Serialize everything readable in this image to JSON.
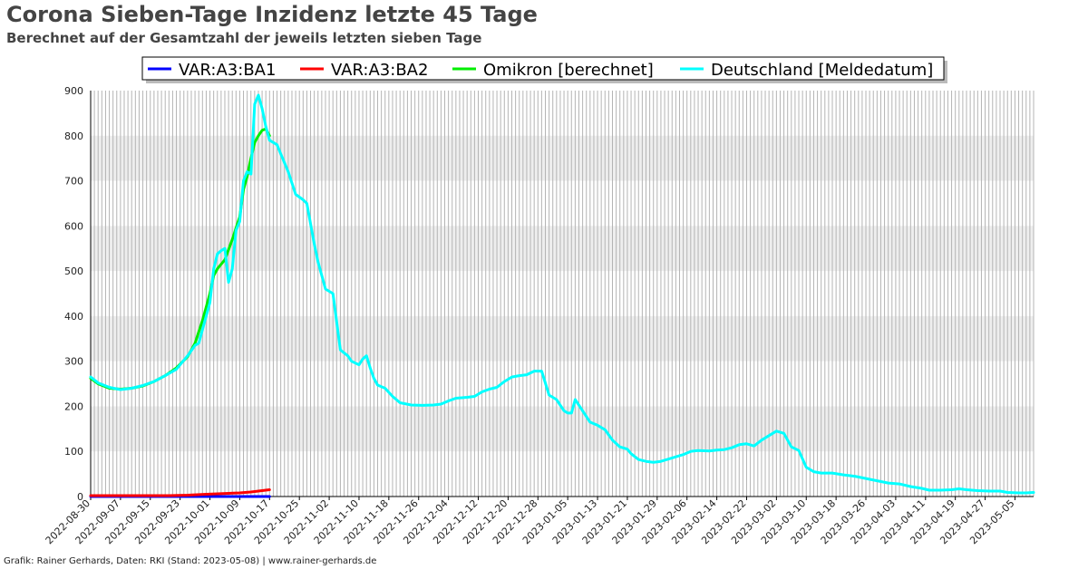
{
  "title": "Corona Sieben-Tage Inzidenz letzte 45 Tage",
  "subtitle": "Berechnet auf der Gesamtzahl der jeweils letzten sieben Tage",
  "footer": "Grafik: Rainer Gerhards, Daten: RKI (Stand: 2023-05-08) | www.rainer-gerhards.de",
  "colors": {
    "VAR:A3:BA1": "#0000ff",
    "VAR:A3:BA2": "#ff0000",
    "Omikron [berechnet]": "#00ee00",
    "Deutschland [Meldedatum]": "#00ffff",
    "band": "#eeeeee",
    "vgrid": "#b4b4b4"
  },
  "chart_data": {
    "type": "line",
    "x_start": "2022-08-30",
    "x_end": "2023-05-10",
    "ylim": [
      0,
      900
    ],
    "y_ticks": [
      "0",
      "100",
      "200",
      "300",
      "400",
      "500",
      "600",
      "700",
      "800",
      "900"
    ],
    "x_tick_labels": [
      "2022-08-30",
      "2022-09-07",
      "2022-09-15",
      "2022-09-23",
      "2022-10-01",
      "2022-10-09",
      "2022-10-17",
      "2022-10-25",
      "2022-11-02",
      "2022-11-10",
      "2022-11-18",
      "2022-11-26",
      "2022-12-04",
      "2022-12-12",
      "2022-12-20",
      "2022-12-28",
      "2023-01-05",
      "2023-01-13",
      "2023-01-21",
      "2023-01-29",
      "2023-02-06",
      "2023-02-14",
      "2023-02-22",
      "2023-03-02",
      "2023-03-10",
      "2023-03-18",
      "2023-03-26",
      "2023-04-03",
      "2023-04-11",
      "2023-04-19",
      "2023-04-27",
      "2023-05-05"
    ],
    "grid": "vertical daily lines, alternating horizontal bands",
    "legend_position": "top-center",
    "series": [
      {
        "name": "VAR:A3:BA1",
        "points": [
          [
            "2022-08-30",
            0
          ],
          [
            "2022-09-15",
            0
          ],
          [
            "2022-10-01",
            0
          ],
          [
            "2022-10-14",
            0
          ],
          [
            "2022-10-17",
            0
          ]
        ]
      },
      {
        "name": "VAR:A3:BA2",
        "points": [
          [
            "2022-08-30",
            2
          ],
          [
            "2022-09-10",
            2
          ],
          [
            "2022-09-20",
            2
          ],
          [
            "2022-09-25",
            3
          ],
          [
            "2022-09-30",
            5
          ],
          [
            "2022-10-03",
            6
          ],
          [
            "2022-10-06",
            7
          ],
          [
            "2022-10-09",
            8
          ],
          [
            "2022-10-12",
            10
          ],
          [
            "2022-10-15",
            13
          ],
          [
            "2022-10-17",
            15
          ]
        ]
      },
      {
        "name": "Omikron [berechnet]",
        "points": [
          [
            "2022-08-30",
            262
          ],
          [
            "2022-09-01",
            250
          ],
          [
            "2022-09-04",
            240
          ],
          [
            "2022-09-07",
            238
          ],
          [
            "2022-09-10",
            240
          ],
          [
            "2022-09-13",
            245
          ],
          [
            "2022-09-16",
            255
          ],
          [
            "2022-09-19",
            268
          ],
          [
            "2022-09-22",
            285
          ],
          [
            "2022-09-25",
            310
          ],
          [
            "2022-09-27",
            340
          ],
          [
            "2022-09-29",
            390
          ],
          [
            "2022-10-01",
            450
          ],
          [
            "2022-10-02",
            490
          ],
          [
            "2022-10-03",
            505
          ],
          [
            "2022-10-05",
            525
          ],
          [
            "2022-10-07",
            570
          ],
          [
            "2022-10-09",
            620
          ],
          [
            "2022-10-10",
            680
          ],
          [
            "2022-10-11",
            710
          ],
          [
            "2022-10-12",
            750
          ],
          [
            "2022-10-13",
            785
          ],
          [
            "2022-10-14",
            800
          ],
          [
            "2022-10-15",
            812
          ],
          [
            "2022-10-16",
            815
          ],
          [
            "2022-10-17",
            800
          ]
        ]
      },
      {
        "name": "Deutschland [Meldedatum]",
        "points": [
          [
            "2022-08-30",
            265
          ],
          [
            "2022-09-01",
            252
          ],
          [
            "2022-09-04",
            242
          ],
          [
            "2022-09-07",
            237
          ],
          [
            "2022-09-10",
            240
          ],
          [
            "2022-09-13",
            246
          ],
          [
            "2022-09-16",
            255
          ],
          [
            "2022-09-19",
            268
          ],
          [
            "2022-09-22",
            282
          ],
          [
            "2022-09-25",
            312
          ],
          [
            "2022-09-27",
            335
          ],
          [
            "2022-09-28",
            340
          ],
          [
            "2022-09-30",
            400
          ],
          [
            "2022-10-01",
            430
          ],
          [
            "2022-10-02",
            505
          ],
          [
            "2022-10-03",
            538
          ],
          [
            "2022-10-04",
            545
          ],
          [
            "2022-10-05",
            550
          ],
          [
            "2022-10-06",
            475
          ],
          [
            "2022-10-07",
            505
          ],
          [
            "2022-10-08",
            590
          ],
          [
            "2022-10-09",
            610
          ],
          [
            "2022-10-10",
            700
          ],
          [
            "2022-10-11",
            720
          ],
          [
            "2022-10-12",
            715
          ],
          [
            "2022-10-13",
            870
          ],
          [
            "2022-10-14",
            890
          ],
          [
            "2022-10-15",
            860
          ],
          [
            "2022-10-16",
            820
          ],
          [
            "2022-10-17",
            790
          ],
          [
            "2022-10-19",
            780
          ],
          [
            "2022-10-20",
            760
          ],
          [
            "2022-10-22",
            720
          ],
          [
            "2022-10-24",
            670
          ],
          [
            "2022-10-26",
            658
          ],
          [
            "2022-10-27",
            650
          ],
          [
            "2022-10-29",
            560
          ],
          [
            "2022-10-30",
            520
          ],
          [
            "2022-11-01",
            460
          ],
          [
            "2022-11-03",
            450
          ],
          [
            "2022-11-05",
            325
          ],
          [
            "2022-11-07",
            312
          ],
          [
            "2022-11-08",
            300
          ],
          [
            "2022-11-10",
            292
          ],
          [
            "2022-11-11",
            305
          ],
          [
            "2022-11-12",
            312
          ],
          [
            "2022-11-13",
            285
          ],
          [
            "2022-11-14",
            262
          ],
          [
            "2022-11-15",
            247
          ],
          [
            "2022-11-17",
            240
          ],
          [
            "2022-11-19",
            222
          ],
          [
            "2022-11-21",
            208
          ],
          [
            "2022-11-24",
            203
          ],
          [
            "2022-11-27",
            202
          ],
          [
            "2022-11-30",
            203
          ],
          [
            "2022-12-02",
            205
          ],
          [
            "2022-12-04",
            212
          ],
          [
            "2022-12-06",
            218
          ],
          [
            "2022-12-09",
            220
          ],
          [
            "2022-12-11",
            222
          ],
          [
            "2022-12-13",
            232
          ],
          [
            "2022-12-15",
            238
          ],
          [
            "2022-12-17",
            242
          ],
          [
            "2022-12-19",
            255
          ],
          [
            "2022-12-21",
            265
          ],
          [
            "2022-12-23",
            268
          ],
          [
            "2022-12-25",
            270
          ],
          [
            "2022-12-27",
            278
          ],
          [
            "2022-12-29",
            278
          ],
          [
            "2022-12-31",
            225
          ],
          [
            "2023-01-02",
            215
          ],
          [
            "2023-01-04",
            190
          ],
          [
            "2023-01-05",
            185
          ],
          [
            "2023-01-06",
            185
          ],
          [
            "2023-01-07",
            215
          ],
          [
            "2023-01-09",
            190
          ],
          [
            "2023-01-11",
            165
          ],
          [
            "2023-01-13",
            158
          ],
          [
            "2023-01-15",
            148
          ],
          [
            "2023-01-17",
            125
          ],
          [
            "2023-01-19",
            110
          ],
          [
            "2023-01-21",
            105
          ],
          [
            "2023-01-22",
            95
          ],
          [
            "2023-01-24",
            82
          ],
          [
            "2023-01-26",
            78
          ],
          [
            "2023-01-28",
            76
          ],
          [
            "2023-01-30",
            78
          ],
          [
            "2023-02-01",
            83
          ],
          [
            "2023-02-03",
            88
          ],
          [
            "2023-02-05",
            93
          ],
          [
            "2023-02-07",
            100
          ],
          [
            "2023-02-09",
            102
          ],
          [
            "2023-02-12",
            101
          ],
          [
            "2023-02-14",
            103
          ],
          [
            "2023-02-16",
            104
          ],
          [
            "2023-02-18",
            108
          ],
          [
            "2023-02-20",
            115
          ],
          [
            "2023-02-22",
            117
          ],
          [
            "2023-02-24",
            112
          ],
          [
            "2023-02-26",
            125
          ],
          [
            "2023-02-28",
            135
          ],
          [
            "2023-03-02",
            145
          ],
          [
            "2023-03-04",
            140
          ],
          [
            "2023-03-06",
            110
          ],
          [
            "2023-03-08",
            102
          ],
          [
            "2023-03-10",
            65
          ],
          [
            "2023-03-12",
            55
          ],
          [
            "2023-03-14",
            52
          ],
          [
            "2023-03-17",
            52
          ],
          [
            "2023-03-20",
            48
          ],
          [
            "2023-03-23",
            45
          ],
          [
            "2023-03-26",
            40
          ],
          [
            "2023-03-29",
            35
          ],
          [
            "2023-04-01",
            30
          ],
          [
            "2023-04-04",
            28
          ],
          [
            "2023-04-07",
            22
          ],
          [
            "2023-04-10",
            18
          ],
          [
            "2023-04-12",
            14
          ],
          [
            "2023-04-15",
            14
          ],
          [
            "2023-04-18",
            15
          ],
          [
            "2023-04-20",
            17
          ],
          [
            "2023-04-22",
            15
          ],
          [
            "2023-04-25",
            13
          ],
          [
            "2023-04-28",
            12
          ],
          [
            "2023-05-01",
            12
          ],
          [
            "2023-05-03",
            9
          ],
          [
            "2023-05-06",
            8
          ],
          [
            "2023-05-08",
            8
          ],
          [
            "2023-05-10",
            9
          ]
        ]
      }
    ]
  }
}
